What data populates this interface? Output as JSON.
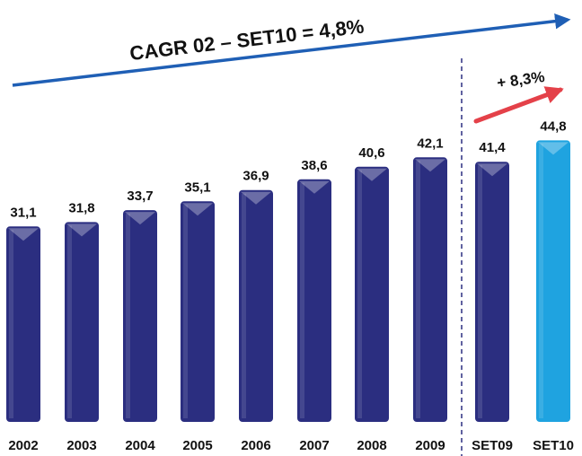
{
  "chart_data": {
    "type": "bar",
    "title": "CAGR 02 – SET10 = 4,8%",
    "annotations": [
      "+ 8,3%"
    ],
    "categories": [
      "2002",
      "2003",
      "2004",
      "2005",
      "2006",
      "2007",
      "2008",
      "2009",
      "SET09",
      "SET10"
    ],
    "values": [
      31.1,
      31.8,
      33.7,
      35.1,
      36.9,
      38.6,
      40.6,
      42.1,
      41.4,
      44.8
    ],
    "value_labels": [
      "31,1",
      "31,8",
      "33,7",
      "35,1",
      "36,9",
      "38,6",
      "40,6",
      "42,1",
      "41,4",
      "44,8"
    ],
    "colors": [
      "#2b2e80",
      "#2b2e80",
      "#2b2e80",
      "#2b2e80",
      "#2b2e80",
      "#2b2e80",
      "#2b2e80",
      "#2b2e80",
      "#2b2e80",
      "#1fa3e0"
    ]
  }
}
